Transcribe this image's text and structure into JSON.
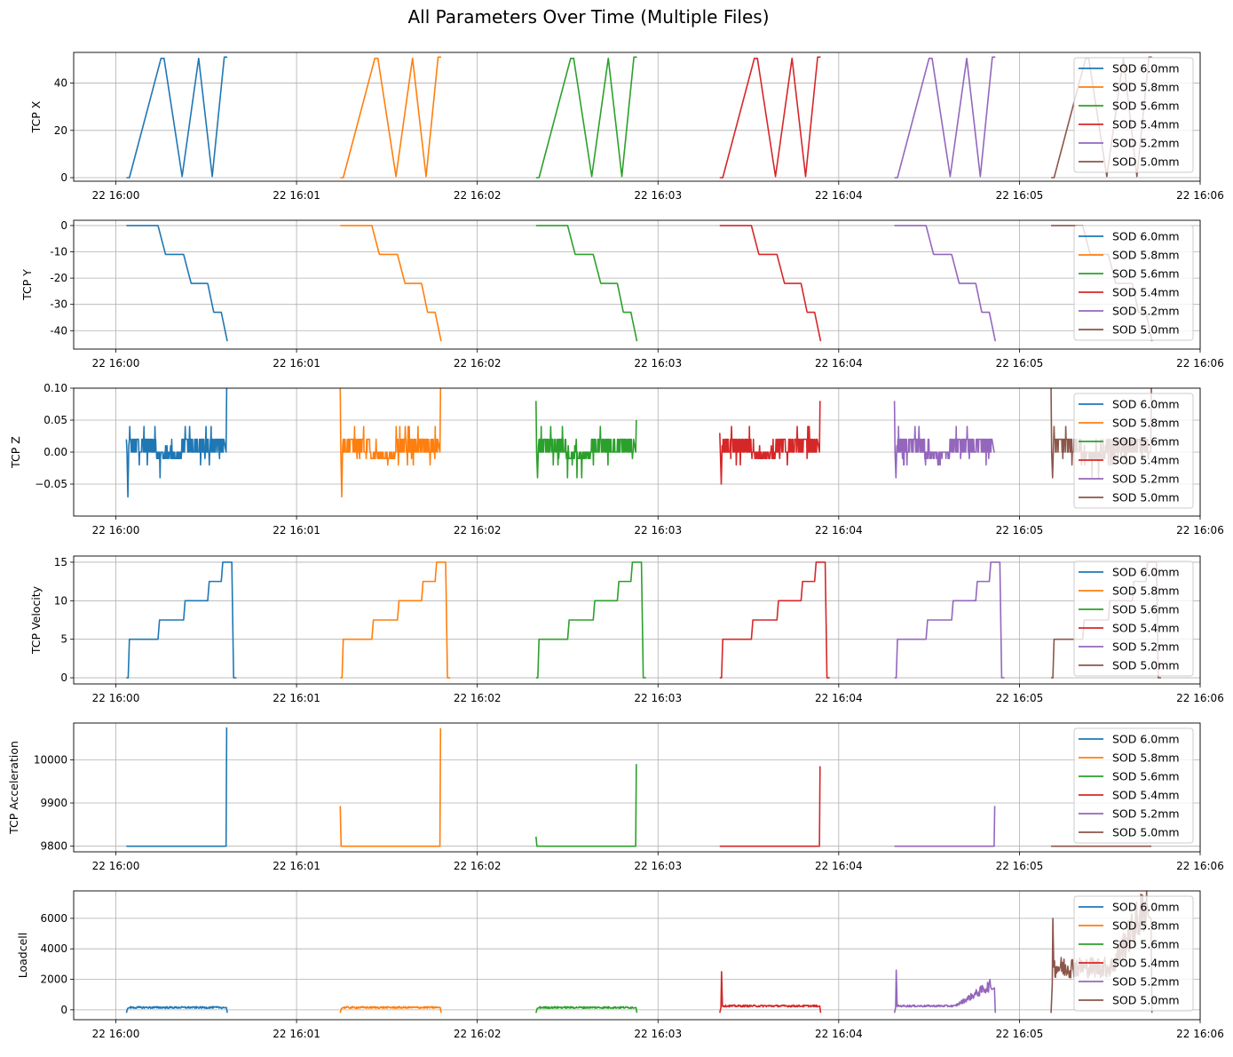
{
  "title": "All Parameters Over Time (Multiple Files)",
  "colors": [
    "#1f77b4",
    "#ff7f0e",
    "#2ca02c",
    "#d62728",
    "#9467bd",
    "#8c564b"
  ],
  "x_ticks": [
    "22 16:00",
    "22 16:01",
    "22 16:02",
    "22 16:03",
    "22 16:04",
    "22 16:05",
    "22 16:06"
  ],
  "chart_data": [
    {
      "type": "line",
      "ylabel": "TCP X",
      "xlim_seconds": [
        -14,
        360
      ],
      "ylim": [
        -1.5,
        53
      ],
      "yticks": [
        0,
        20,
        40
      ],
      "grid": true,
      "legend": "right",
      "series": [
        {
          "name": "SOD 6.0mm",
          "start": 3.5,
          "end": 37,
          "values": [
            [
              3.5,
              0
            ],
            [
              4.5,
              0
            ],
            [
              15,
              50.5
            ],
            [
              16,
              50.5
            ],
            [
              22,
              0.5
            ],
            [
              27.5,
              50.5
            ],
            [
              32,
              0.5
            ],
            [
              36,
              51
            ],
            [
              37,
              51
            ]
          ]
        },
        {
          "name": "SOD 5.8mm",
          "start": 74.5,
          "end": 108,
          "values": [
            [
              74.5,
              0
            ],
            [
              75.5,
              0
            ],
            [
              86,
              50.5
            ],
            [
              87,
              50.5
            ],
            [
              93,
              0.5
            ],
            [
              98.5,
              50.5
            ],
            [
              103,
              0.5
            ],
            [
              107,
              51
            ],
            [
              108,
              51
            ]
          ]
        },
        {
          "name": "SOD 5.6mm",
          "start": 139.5,
          "end": 173,
          "values": [
            [
              139.5,
              0
            ],
            [
              140.5,
              0
            ],
            [
              151,
              50.5
            ],
            [
              152,
              50.5
            ],
            [
              158,
              0.5
            ],
            [
              163.5,
              50.5
            ],
            [
              168,
              0.5
            ],
            [
              172,
              51
            ],
            [
              173,
              51
            ]
          ]
        },
        {
          "name": "SOD 5.4mm",
          "start": 200.5,
          "end": 234,
          "values": [
            [
              200.5,
              0
            ],
            [
              201.5,
              0
            ],
            [
              212,
              50.5
            ],
            [
              213,
              50.5
            ],
            [
              219,
              0.5
            ],
            [
              224.5,
              50.5
            ],
            [
              229,
              0.5
            ],
            [
              233,
              51
            ],
            [
              234,
              51
            ]
          ]
        },
        {
          "name": "SOD 5.2mm",
          "start": 258.5,
          "end": 292,
          "values": [
            [
              258.5,
              0
            ],
            [
              259.5,
              0
            ],
            [
              270,
              50.5
            ],
            [
              271,
              50.5
            ],
            [
              277,
              0.5
            ],
            [
              282.5,
              50.5
            ],
            [
              287,
              0.5
            ],
            [
              291,
              51
            ],
            [
              292,
              51
            ]
          ]
        },
        {
          "name": "SOD 5.0mm",
          "start": 310.5,
          "end": 344,
          "values": [
            [
              310.5,
              0
            ],
            [
              311.5,
              0
            ],
            [
              322,
              50.5
            ],
            [
              323,
              50.5
            ],
            [
              329,
              0.5
            ],
            [
              334.5,
              50.5
            ],
            [
              339,
              0.5
            ],
            [
              343,
              51
            ],
            [
              344,
              51
            ]
          ]
        }
      ]
    },
    {
      "type": "line",
      "ylabel": "TCP Y",
      "xlim_seconds": [
        -14,
        360
      ],
      "ylim": [
        -47,
        2
      ],
      "yticks": [
        0,
        -10,
        -20,
        -30,
        -40
      ],
      "grid": true,
      "legend": "right",
      "series": [
        {
          "name": "SOD 6.0mm",
          "start": 3.5,
          "end": 37
        },
        {
          "name": "SOD 5.8mm",
          "start": 74.5,
          "end": 108
        },
        {
          "name": "SOD 5.6mm",
          "start": 139.5,
          "end": 173
        },
        {
          "name": "SOD 5.4mm",
          "start": 200.5,
          "end": 234
        },
        {
          "name": "SOD 5.2mm",
          "start": 258.5,
          "end": 292
        },
        {
          "name": "SOD 5.0mm",
          "start": 310.5,
          "end": 344
        }
      ],
      "profile": [
        [
          0,
          0
        ],
        [
          10.5,
          0
        ],
        [
          13,
          -11
        ],
        [
          19,
          -11
        ],
        [
          21.5,
          -22
        ],
        [
          27,
          -22
        ],
        [
          29,
          -33
        ],
        [
          31.5,
          -33
        ],
        [
          33.5,
          -44
        ],
        [
          33.5,
          -44
        ]
      ]
    },
    {
      "type": "line",
      "ylabel": "TCP Z",
      "xlim_seconds": [
        -14,
        360
      ],
      "ylim": [
        -0.1,
        0.1
      ],
      "yticks": [
        0.1,
        0.05,
        0.0,
        -0.05
      ],
      "ytick_labels": [
        "0.10",
        "0.05",
        "0.00",
        "−0.05"
      ],
      "grid": true,
      "legend": "right",
      "series": [
        {
          "name": "SOD 6.0mm",
          "start": 3.5,
          "end": 37,
          "spike_start": 0.02,
          "spike_min": -0.07,
          "spike_end": 0.1
        },
        {
          "name": "SOD 5.8mm",
          "start": 74.5,
          "end": 108,
          "spike_start": 0.1,
          "spike_min": -0.07,
          "spike_end": 0.1
        },
        {
          "name": "SOD 5.6mm",
          "start": 139.5,
          "end": 173,
          "spike_start": 0.08,
          "spike_min": -0.04,
          "spike_end": 0.05
        },
        {
          "name": "SOD 5.4mm",
          "start": 200.5,
          "end": 234,
          "spike_start": 0.03,
          "spike_min": -0.05,
          "spike_end": 0.08
        },
        {
          "name": "SOD 5.2mm",
          "start": 258.5,
          "end": 292,
          "spike_start": 0.08,
          "spike_min": -0.04,
          "spike_end": 0.0
        },
        {
          "name": "SOD 5.0mm",
          "start": 310.5,
          "end": 344,
          "spike_start": 0.1,
          "spike_min": -0.04,
          "spike_end": 0.1
        }
      ]
    },
    {
      "type": "line",
      "ylabel": "TCP Velocity",
      "xlim_seconds": [
        -14,
        360
      ],
      "ylim": [
        -0.8,
        15.8
      ],
      "yticks": [
        0,
        5,
        10,
        15
      ],
      "grid": true,
      "legend": "right",
      "series": [
        {
          "name": "SOD 6.0mm",
          "start": 3.5,
          "end": 37
        },
        {
          "name": "SOD 5.8mm",
          "start": 74.5,
          "end": 108
        },
        {
          "name": "SOD 5.6mm",
          "start": 139.5,
          "end": 173
        },
        {
          "name": "SOD 5.4mm",
          "start": 200.5,
          "end": 234
        },
        {
          "name": "SOD 5.2mm",
          "start": 258.5,
          "end": 292
        },
        {
          "name": "SOD 5.0mm",
          "start": 310.5,
          "end": 344
        }
      ],
      "profile": [
        [
          0,
          0
        ],
        [
          0.6,
          0
        ],
        [
          1,
          5
        ],
        [
          10.5,
          5
        ],
        [
          11,
          7.5
        ],
        [
          19,
          7.5
        ],
        [
          19.5,
          10
        ],
        [
          27,
          10
        ],
        [
          27.5,
          12.5
        ],
        [
          31.5,
          12.5
        ],
        [
          32,
          15
        ],
        [
          35,
          15
        ],
        [
          35.6,
          0
        ],
        [
          36.5,
          0
        ]
      ]
    },
    {
      "type": "line",
      "ylabel": "TCP Acceleration",
      "xlim_seconds": [
        -14,
        360
      ],
      "ylim": [
        9787,
        10085
      ],
      "yticks": [
        9800,
        9900,
        10000
      ],
      "grid": true,
      "legend": "right",
      "series": [
        {
          "name": "SOD 6.0mm",
          "start": 3.5,
          "end": 37,
          "start_peak": 9800,
          "end_peak": 10075
        },
        {
          "name": "SOD 5.8mm",
          "start": 74.5,
          "end": 108,
          "start_peak": 9893,
          "end_peak": 10073
        },
        {
          "name": "SOD 5.6mm",
          "start": 139.5,
          "end": 173,
          "start_peak": 9822,
          "end_peak": 9990
        },
        {
          "name": "SOD 5.4mm",
          "start": 200.5,
          "end": 234,
          "start_peak": 9800,
          "end_peak": 9985
        },
        {
          "name": "SOD 5.2mm",
          "start": 258.5,
          "end": 292,
          "start_peak": 9800,
          "end_peak": 9893
        },
        {
          "name": "SOD 5.0mm",
          "start": 310.5,
          "end": 344,
          "start_peak": 9800,
          "end_peak": 9800
        }
      ]
    },
    {
      "type": "line",
      "ylabel": "Loadcell",
      "xlim_seconds": [
        -14,
        360
      ],
      "ylim": [
        -650,
        7800
      ],
      "yticks": [
        0,
        2000,
        4000,
        6000
      ],
      "grid": true,
      "legend": "right",
      "series": [
        {
          "name": "SOD 6.0mm",
          "start": 3.5,
          "end": 37,
          "base": 150,
          "spike": 0,
          "tail": 0
        },
        {
          "name": "SOD 5.8mm",
          "start": 74.5,
          "end": 108,
          "base": 150,
          "spike": 0,
          "tail": 0
        },
        {
          "name": "SOD 5.6mm",
          "start": 139.5,
          "end": 173,
          "base": 150,
          "spike": 0,
          "tail": 0
        },
        {
          "name": "SOD 5.4mm",
          "start": 200.5,
          "end": 234,
          "base": 250,
          "spike": 2500,
          "tail": 0
        },
        {
          "name": "SOD 5.2mm",
          "start": 258.5,
          "end": 292,
          "base": 250,
          "spike": 2600,
          "tail": 1800
        },
        {
          "name": "SOD 5.0mm",
          "start": 310.5,
          "end": 344,
          "base": 2800,
          "spike": 6000,
          "tail": 7500
        }
      ]
    }
  ]
}
